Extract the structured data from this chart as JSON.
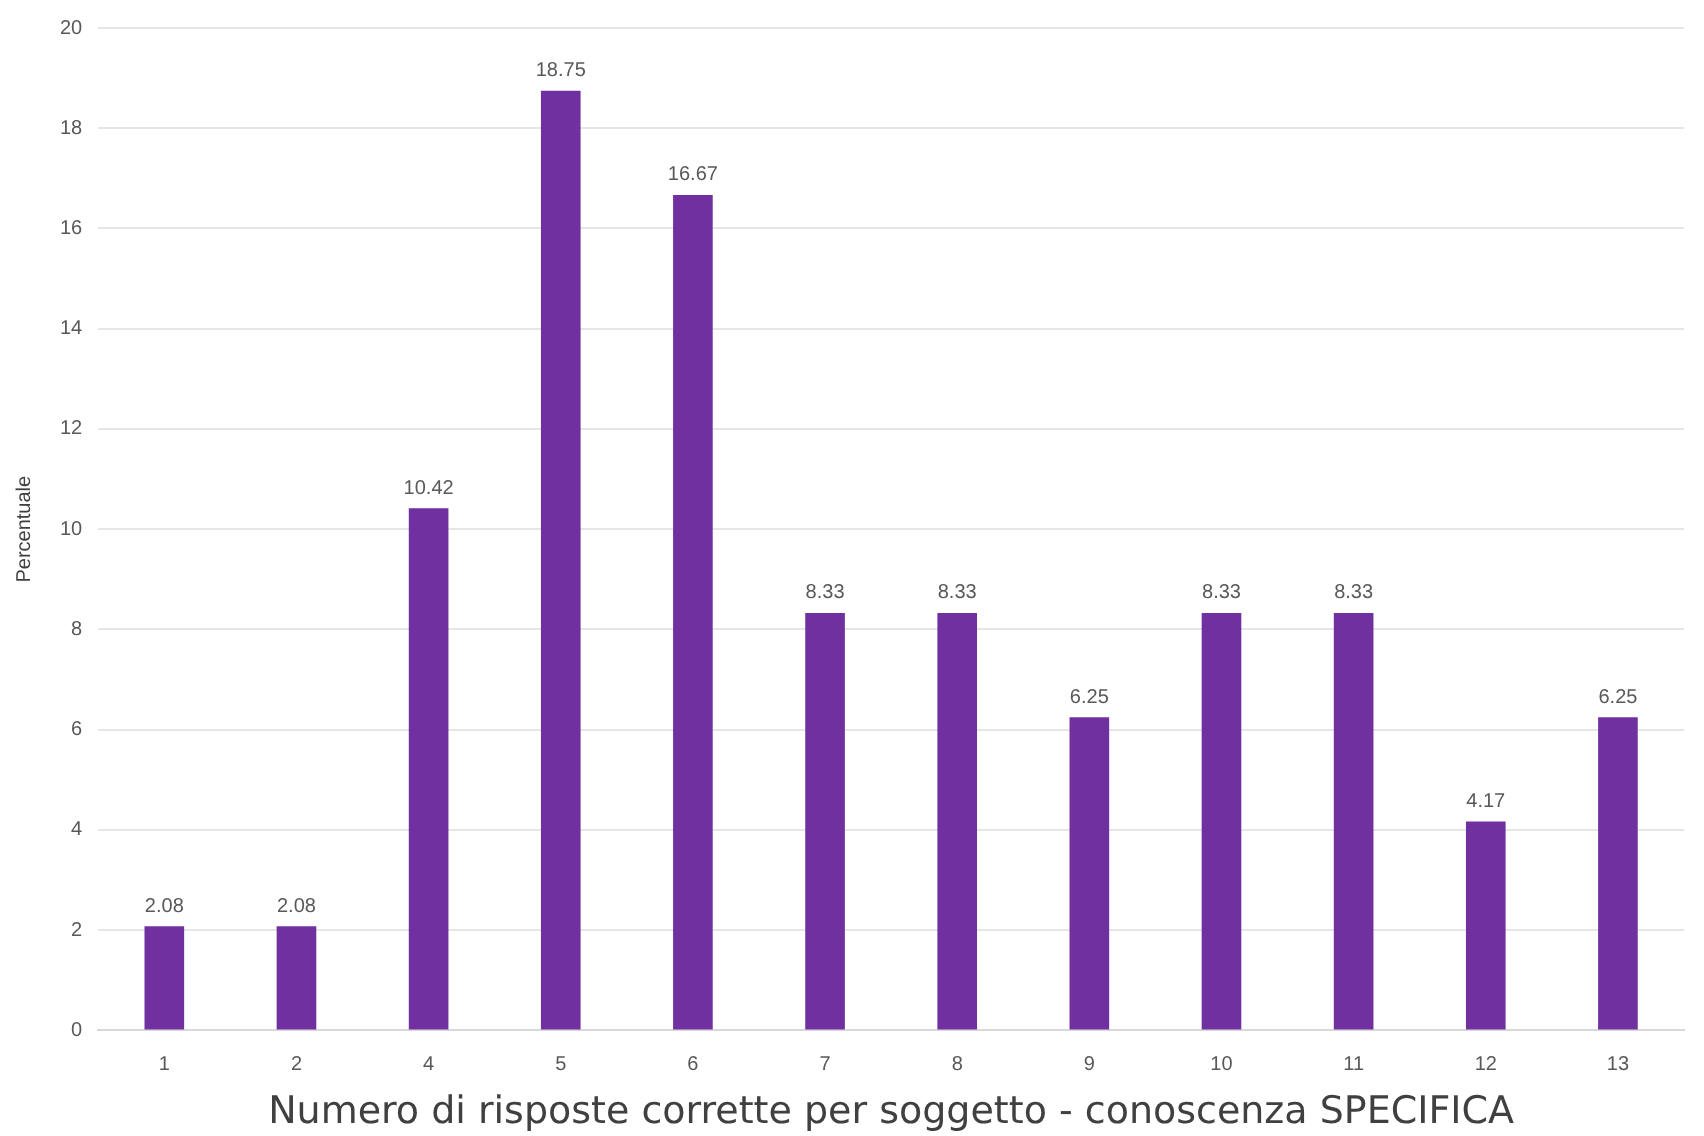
{
  "chart_data": {
    "type": "bar",
    "xlabel": "Numero di risposte corrette per soggetto - conoscenza SPECIFICA",
    "ylabel": "Percentuale",
    "categories": [
      "1",
      "2",
      "4",
      "5",
      "6",
      "7",
      "8",
      "9",
      "10",
      "11",
      "12",
      "13"
    ],
    "values": [
      2.08,
      2.08,
      10.42,
      18.75,
      16.67,
      8.33,
      8.33,
      6.25,
      8.33,
      8.33,
      4.17,
      6.25
    ],
    "color": "#7030a0",
    "ylim": [
      0,
      20
    ],
    "yticks": [
      0,
      2,
      4,
      6,
      8,
      10,
      12,
      14,
      16,
      18,
      20
    ],
    "grid": "y",
    "data_labels": true,
    "legend": false
  }
}
